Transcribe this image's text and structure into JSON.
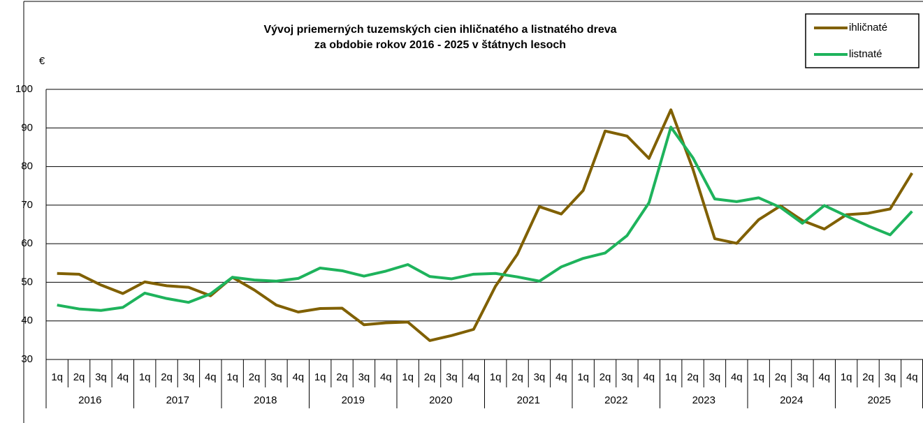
{
  "chart_data": {
    "type": "line",
    "title": [
      "Vývoj priemerných tuzemských cien ihličnatého a listnatého dreva",
      "za obdobie rokov 2016 - 2025 v štátnych lesoch"
    ],
    "y_label": "€",
    "categories": [
      "1q",
      "2q",
      "3q",
      "4q",
      "1q",
      "2q",
      "3q",
      "4q",
      "1q",
      "2q",
      "3q",
      "4q",
      "1q",
      "2q",
      "3q",
      "4q",
      "1q",
      "2q",
      "3q",
      "4q",
      "1q",
      "2q",
      "3q",
      "4q",
      "1q",
      "2q",
      "3q",
      "4q",
      "1q",
      "2q",
      "3q",
      "4q",
      "1q",
      "2q",
      "3q",
      "4q",
      "1q",
      "2q",
      "3q",
      "4q"
    ],
    "years": [
      "2016",
      "2017",
      "2018",
      "2019",
      "2020",
      "2021",
      "2022",
      "2023",
      "2024",
      "2025"
    ],
    "series": [
      {
        "name": "ihličnaté",
        "color": "#806000",
        "values": [
          52.3,
          52.1,
          49.3,
          47.1,
          50.1,
          49.1,
          48.7,
          46.5,
          51.3,
          48.0,
          44.1,
          42.3,
          43.2,
          43.3,
          39.0,
          39.5,
          39.7,
          34.9,
          36.2,
          37.8,
          49.0,
          57.3,
          69.6,
          67.7,
          73.8,
          89.2,
          87.9,
          82.1,
          94.7,
          79.4,
          61.3,
          60.1,
          66.2,
          69.8,
          66.0,
          63.8,
          67.5,
          67.9,
          69.0,
          78.3
        ]
      },
      {
        "name": "listnaté",
        "color": "#1eb35c",
        "values": [
          44.1,
          43.1,
          42.7,
          43.5,
          47.2,
          45.8,
          44.8,
          47.0,
          51.3,
          50.6,
          50.3,
          51.0,
          53.7,
          53.0,
          51.6,
          52.9,
          54.6,
          51.5,
          50.9,
          52.1,
          52.3,
          51.4,
          50.3,
          54.0,
          56.2,
          57.6,
          62.1,
          70.6,
          90.2,
          82.3,
          71.6,
          70.9,
          71.9,
          69.4,
          65.3,
          69.9,
          67.2,
          64.6,
          62.3,
          68.4
        ]
      }
    ],
    "ylim": [
      30,
      100
    ],
    "yticks": [
      30,
      40,
      50,
      60,
      70,
      80,
      90,
      100
    ],
    "grid": true,
    "legend": "top-right"
  }
}
